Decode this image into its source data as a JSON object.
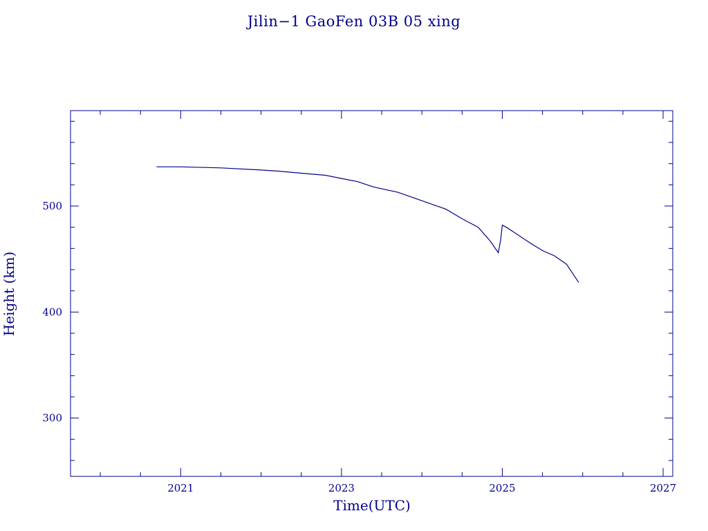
{
  "chart_data": {
    "type": "line",
    "title": "Jilin−1 GaoFen 03B 05 xing",
    "xlabel": "Time(UTC)",
    "ylabel": "Height (km)",
    "xlim": [
      2019.63,
      2027.12
    ],
    "ylim": [
      245,
      590
    ],
    "x_ticks": [
      2021,
      2023,
      2025,
      2027
    ],
    "x_tick_labels": [
      "2021",
      "2023",
      "2025",
      "2027"
    ],
    "y_ticks": [
      300,
      400,
      500
    ],
    "y_tick_labels": [
      "300",
      "400",
      "500"
    ],
    "grid": false,
    "line_color": "#00008B",
    "text_color": "#00008B",
    "series": [
      {
        "x": [
          2020.7,
          2021.0,
          2021.5,
          2022.0,
          2022.2,
          2022.5,
          2022.8,
          2023.0,
          2023.2,
          2023.4,
          2023.7,
          2024.0,
          2024.3,
          2024.5,
          2024.7,
          2024.85,
          2024.95,
          2024.98,
          2025.0,
          2025.05,
          2025.15,
          2025.35,
          2025.5,
          2025.65,
          2025.8,
          2025.95
        ],
        "y": [
          537,
          537,
          536,
          534,
          533,
          531,
          529,
          526,
          523,
          518,
          513,
          505,
          497,
          488,
          480,
          467,
          456,
          468,
          482,
          480,
          475,
          465,
          458,
          453,
          445,
          428
        ]
      }
    ]
  }
}
